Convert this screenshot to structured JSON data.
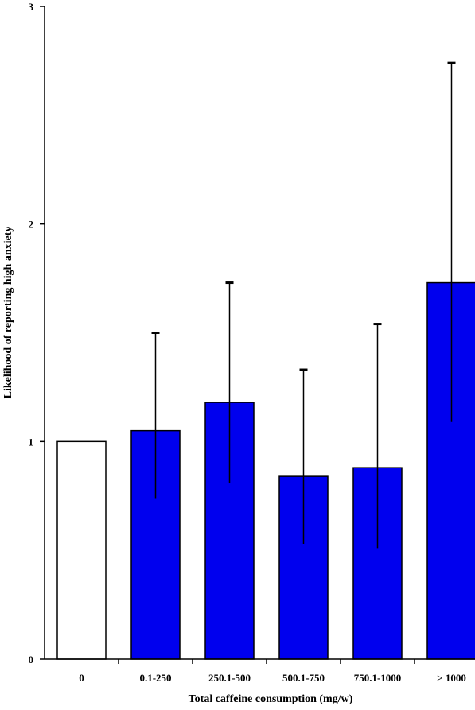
{
  "chart_data": {
    "type": "bar",
    "title": "",
    "xlabel": "Total caffeine consumption (mg/w)",
    "ylabel": "Likelihood of reporting high anxiety",
    "ylim": [
      0,
      3
    ],
    "yticks": [
      "0",
      "1",
      "2",
      "3"
    ],
    "categories": [
      "0",
      "0.1-250",
      "250.1-500",
      "500.1-750",
      "750.1-1000",
      "> 1000"
    ],
    "values": [
      1.0,
      1.05,
      1.18,
      0.84,
      0.88,
      1.73
    ],
    "error_upper": [
      null,
      1.5,
      1.73,
      1.33,
      1.54,
      2.74
    ],
    "error_lower": [
      null,
      0.74,
      0.81,
      0.53,
      0.51,
      1.09
    ],
    "bar_colors": [
      "#ffffff",
      "#0000ee",
      "#0000ee",
      "#0000ee",
      "#0000ee",
      "#0000ee"
    ],
    "grid": false,
    "legend": "none"
  }
}
